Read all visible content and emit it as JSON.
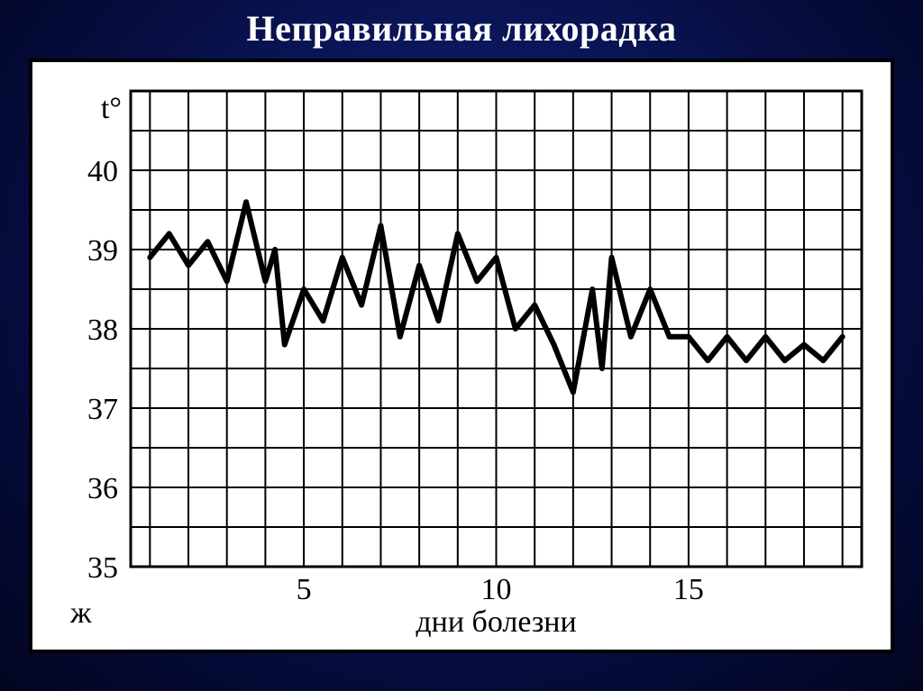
{
  "title": "Неправильная лихорадка",
  "chart": {
    "type": "line",
    "yaxis_label": "t°",
    "xaxis_label": "дни болезни",
    "corner_label": "ж",
    "ylim": [
      35,
      41
    ],
    "y_ticks": [
      35,
      36,
      37,
      38,
      39,
      40
    ],
    "x_ticks": [
      5,
      10,
      15
    ],
    "xlim": [
      0.5,
      19.5
    ],
    "x_grid_count": 19,
    "background_color": "#ffffff",
    "grid_color": "#000000",
    "line_color": "#000000",
    "line_width": 6,
    "grid_line_width": 2,
    "title_fontsize": 40,
    "axis_label_fontsize": 34,
    "tick_fontsize": 34,
    "title_color": "#ffffff",
    "series": [
      {
        "x": 1.0,
        "y": 38.9
      },
      {
        "x": 1.5,
        "y": 39.2
      },
      {
        "x": 2.0,
        "y": 38.8
      },
      {
        "x": 2.5,
        "y": 39.1
      },
      {
        "x": 3.0,
        "y": 38.6
      },
      {
        "x": 3.5,
        "y": 39.6
      },
      {
        "x": 4.0,
        "y": 38.6
      },
      {
        "x": 4.25,
        "y": 39.0
      },
      {
        "x": 4.5,
        "y": 37.8
      },
      {
        "x": 5.0,
        "y": 38.5
      },
      {
        "x": 5.5,
        "y": 38.1
      },
      {
        "x": 6.0,
        "y": 38.9
      },
      {
        "x": 6.5,
        "y": 38.3
      },
      {
        "x": 7.0,
        "y": 39.3
      },
      {
        "x": 7.5,
        "y": 37.9
      },
      {
        "x": 8.0,
        "y": 38.8
      },
      {
        "x": 8.5,
        "y": 38.1
      },
      {
        "x": 9.0,
        "y": 39.2
      },
      {
        "x": 9.5,
        "y": 38.6
      },
      {
        "x": 10.0,
        "y": 38.9
      },
      {
        "x": 10.5,
        "y": 38.0
      },
      {
        "x": 11.0,
        "y": 38.3
      },
      {
        "x": 11.5,
        "y": 37.8
      },
      {
        "x": 12.0,
        "y": 37.2
      },
      {
        "x": 12.5,
        "y": 38.5
      },
      {
        "x": 12.75,
        "y": 37.5
      },
      {
        "x": 13.0,
        "y": 38.9
      },
      {
        "x": 13.5,
        "y": 37.9
      },
      {
        "x": 14.0,
        "y": 38.5
      },
      {
        "x": 14.5,
        "y": 37.9
      },
      {
        "x": 15.0,
        "y": 37.9
      },
      {
        "x": 15.5,
        "y": 37.6
      },
      {
        "x": 16.0,
        "y": 37.9
      },
      {
        "x": 16.5,
        "y": 37.6
      },
      {
        "x": 17.0,
        "y": 37.9
      },
      {
        "x": 17.5,
        "y": 37.6
      },
      {
        "x": 18.0,
        "y": 37.8
      },
      {
        "x": 18.5,
        "y": 37.6
      },
      {
        "x": 19.0,
        "y": 37.9
      }
    ]
  }
}
